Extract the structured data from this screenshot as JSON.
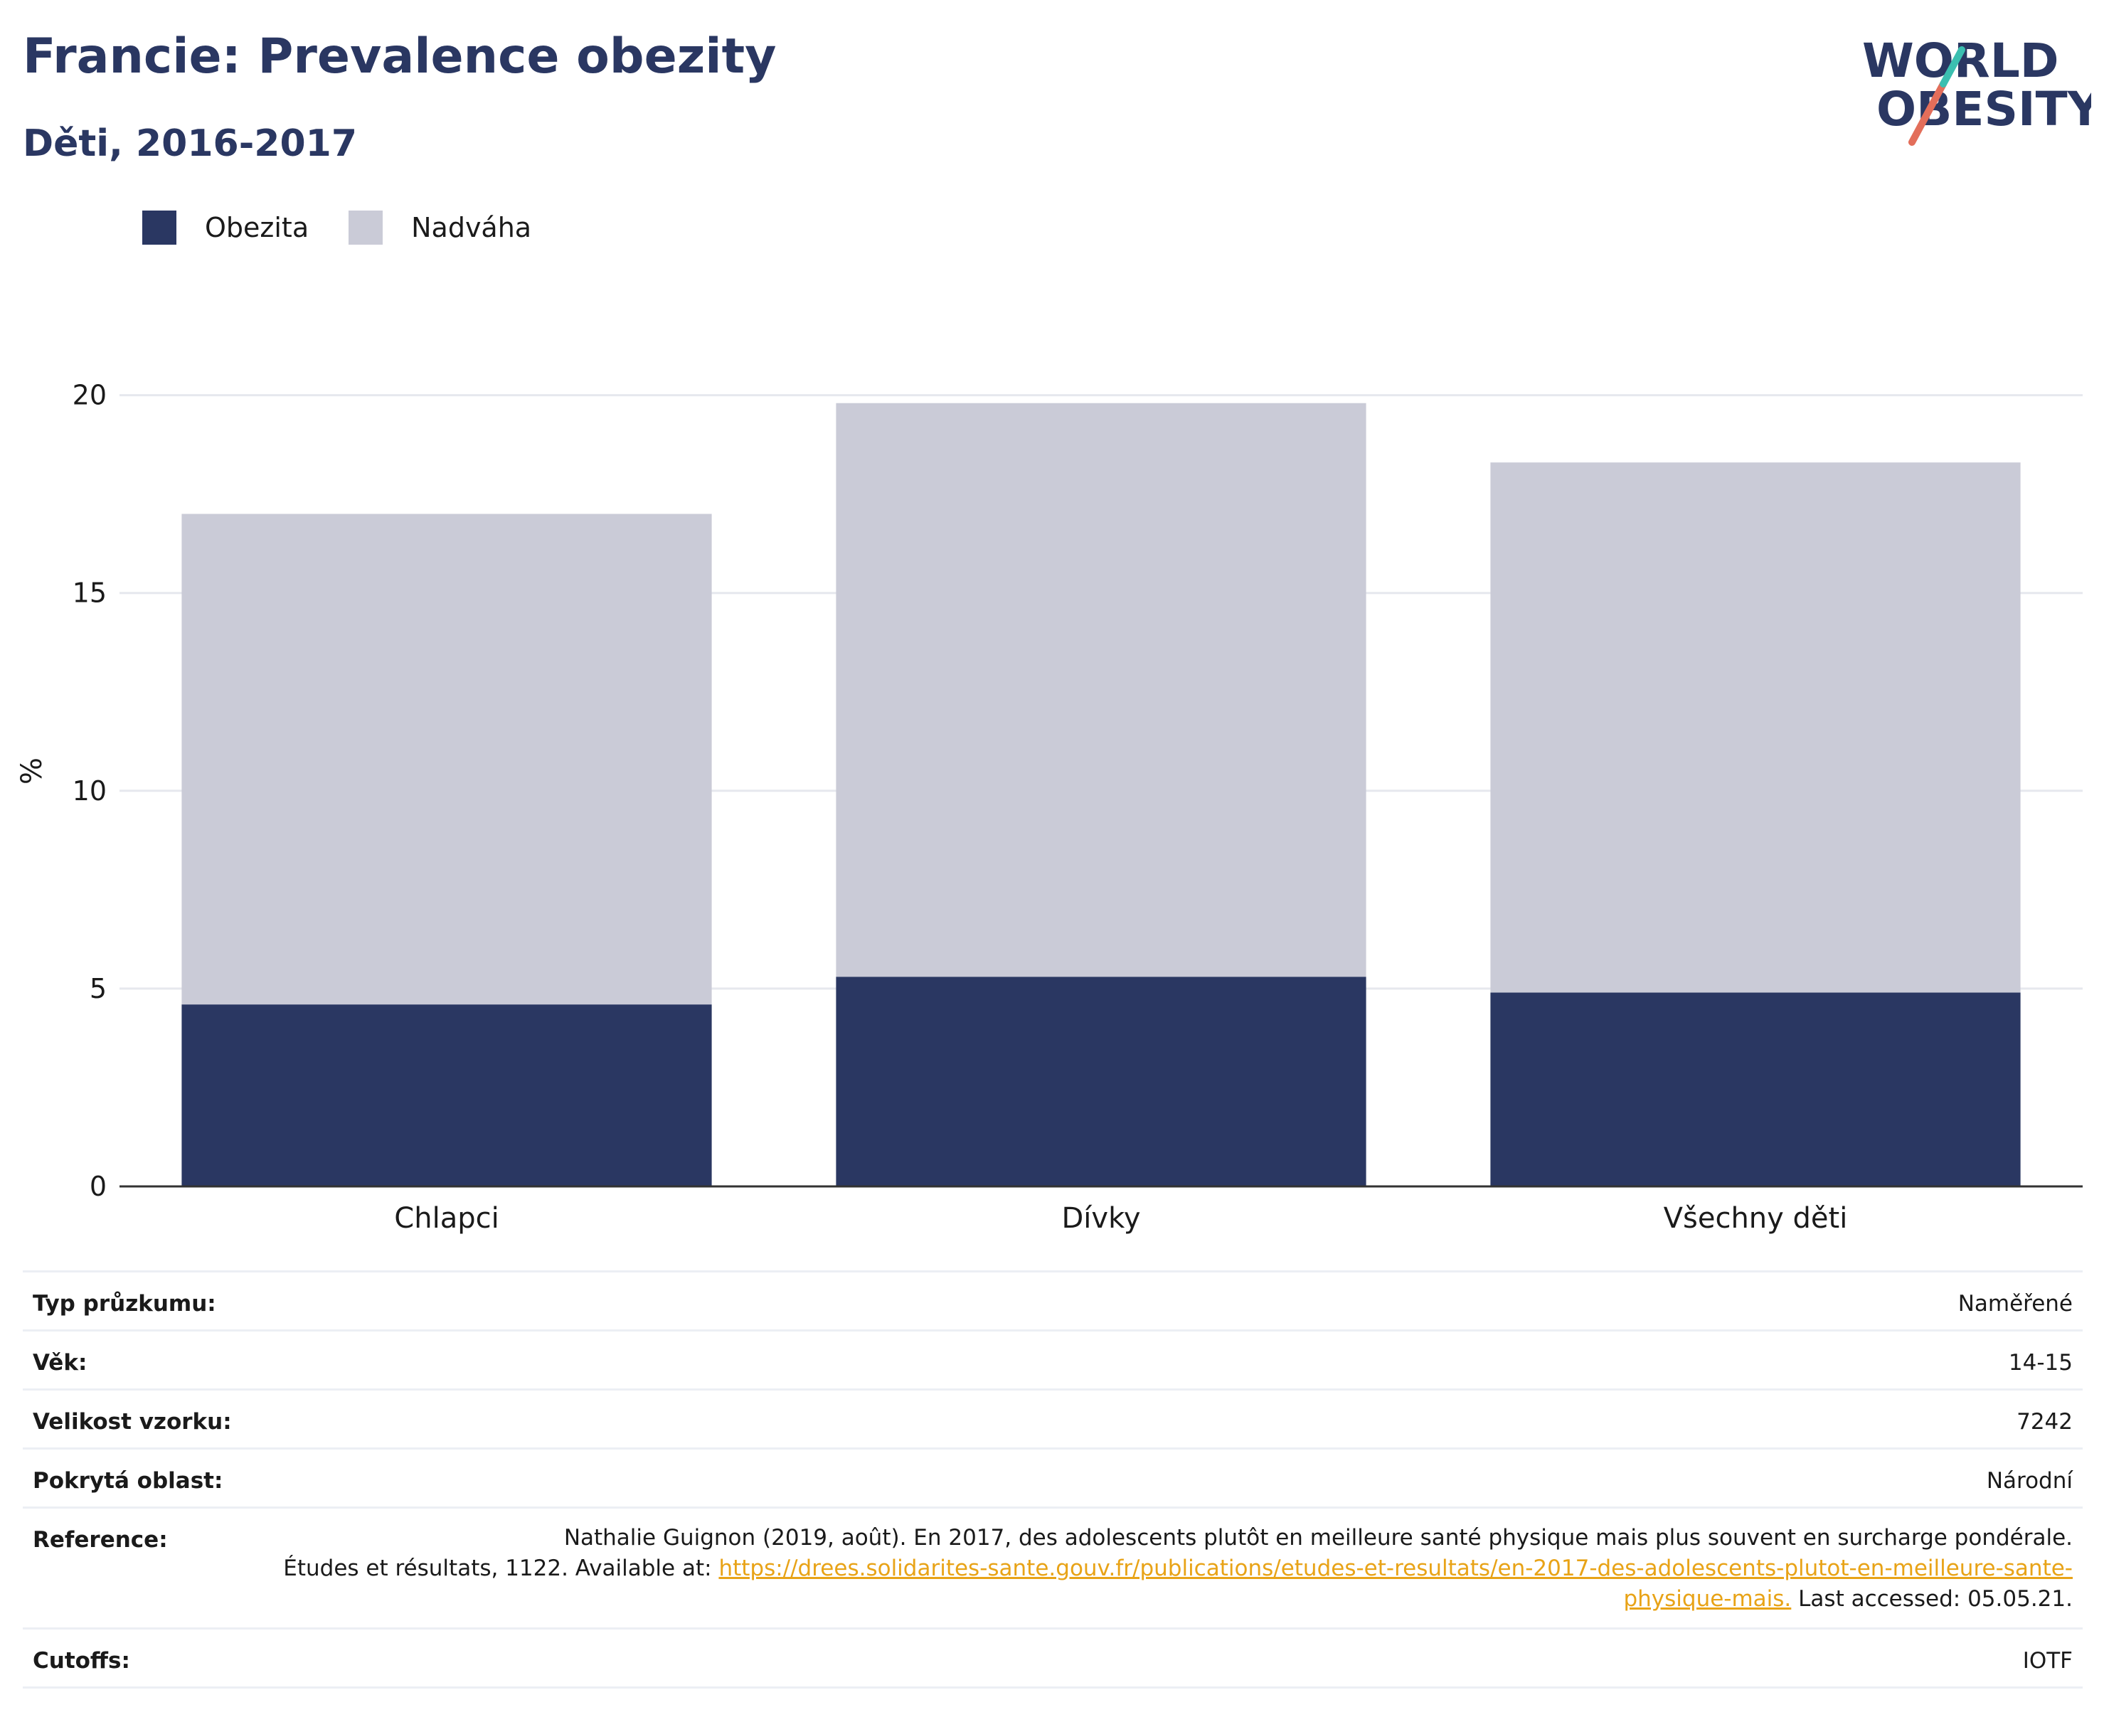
{
  "header": {
    "title": "Francie: Prevalence obezity",
    "subtitle": "Děti, 2016-2017",
    "logo": {
      "line1": "WORLD",
      "line2": "OBESITY"
    }
  },
  "colors": {
    "obesity": "#2a3762",
    "overweight": "#cacbd7",
    "accent": "#2a3762",
    "link": "#e8a317"
  },
  "chart_data": {
    "type": "bar",
    "stacked": true,
    "categories": [
      "Chlapci",
      "Dívky",
      "Všechny děti"
    ],
    "series": [
      {
        "name": "Obezita",
        "values": [
          4.6,
          5.3,
          4.9
        ]
      },
      {
        "name": "Nadváha",
        "values": [
          12.4,
          14.5,
          13.4
        ]
      }
    ],
    "ylabel": "%",
    "ylim": [
      0,
      21
    ],
    "yticks": [
      0,
      5,
      10,
      15,
      20
    ],
    "grid": true,
    "legend": "top-left"
  },
  "meta": {
    "rows": [
      {
        "key": "Typ průzkumu:",
        "value": "Naměřené"
      },
      {
        "key": "Věk:",
        "value": "14-15"
      },
      {
        "key": "Velikost vzorku:",
        "value": "7242"
      },
      {
        "key": "Pokrytá oblast:",
        "value": "Národní"
      }
    ],
    "reference": {
      "key": "Reference:",
      "text1": "Nathalie Guignon (2019, août). En 2017, des adolescents plutôt en meilleure santé physique mais plus souvent en surcharge pondérale.",
      "text2": "Études et résultats, 1122. Available at: ",
      "link": "https://drees.solidarites-sante.gouv.fr/publications/etudes-et-resultats/en-2017-des-adolescents-plutot-en-meilleure-sante-physique-mais.",
      "text3": " Last accessed: 05.05.21."
    },
    "cutoffs": {
      "key": "Cutoffs:",
      "value": "IOTF"
    }
  }
}
